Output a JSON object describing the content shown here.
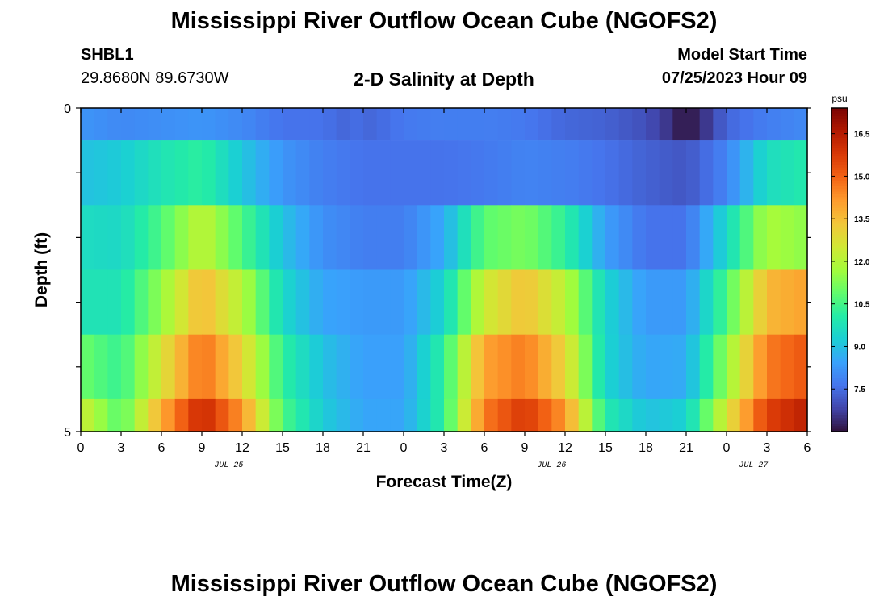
{
  "header": {
    "title": "Mississippi River Outflow Ocean Cube (NGOFS2)",
    "station": "SHBL1",
    "coords": "29.8680N  89.6730W",
    "subtitle": "2-D Salinity at Depth",
    "start_label": "Model Start Time",
    "start_value": "07/25/2023 Hour 09"
  },
  "footer": {
    "title": "Mississippi River Outflow Ocean Cube (NGOFS2)"
  },
  "colors": {
    "colormap": [
      "#30123b",
      "#4145ab",
      "#4675ed",
      "#39a2fc",
      "#1bcfd4",
      "#24eca6",
      "#61fc6c",
      "#a4fc3b",
      "#d1e834",
      "#f3c63a",
      "#fe9b2d",
      "#f36315",
      "#d93806",
      "#b11901",
      "#7a0403"
    ],
    "frame": "#000000"
  },
  "chart_data": {
    "type": "heatmap",
    "xlabel": "Forecast Time(Z)",
    "ylabel": "Depth (ft)",
    "x_tick_labels": [
      "0",
      "3",
      "6",
      "9",
      "12",
      "15",
      "18",
      "21",
      "0",
      "3",
      "6",
      "9",
      "12",
      "15",
      "18",
      "21",
      "0",
      "3",
      "6"
    ],
    "date_labels": [
      {
        "label": "JUL 25",
        "hour": 11
      },
      {
        "label": "JUL 26",
        "hour": 35
      },
      {
        "label": "JUL 27",
        "hour": 50
      }
    ],
    "xlim_hours": [
      0,
      54
    ],
    "y_tick_labels": [
      {
        "depth": 0,
        "label": "0"
      },
      {
        "depth": 5,
        "label": "5"
      }
    ],
    "ylim": [
      0,
      5
    ],
    "colorbar": {
      "unit": "psu",
      "range": [
        6.0,
        17.4
      ],
      "ticks": [
        "7.5",
        "9.0",
        "10.5",
        "12.0",
        "13.5",
        "15.0",
        "16.5"
      ]
    },
    "layers": [
      {
        "depth": "0-0.5",
        "times": [
          0,
          3,
          6,
          9,
          12,
          15,
          18,
          19.5,
          20.5,
          21,
          21.5,
          22.5,
          24,
          27,
          30,
          33,
          36,
          39,
          42,
          43.5,
          44.5,
          45,
          45.5,
          46.5,
          48,
          51,
          54
        ],
        "values": [
          8.2,
          8.0,
          8.1,
          8.2,
          8.0,
          7.6,
          7.6,
          7.4,
          7.5,
          7.4,
          7.4,
          7.5,
          7.7,
          7.8,
          7.8,
          7.7,
          7.4,
          7.3,
          7.0,
          6.6,
          6.2,
          6.0,
          6.2,
          6.6,
          7.4,
          7.8,
          8.0
        ]
      },
      {
        "depth": "0.5-1.5",
        "times": [
          0,
          3,
          6,
          9,
          12,
          15,
          18,
          21,
          24,
          27,
          30,
          33,
          36,
          39,
          42,
          45,
          48,
          51,
          54
        ],
        "values": [
          9.0,
          9.2,
          9.8,
          10.2,
          9.1,
          8.2,
          7.8,
          7.6,
          7.6,
          7.6,
          7.7,
          7.9,
          7.8,
          7.6,
          7.3,
          7.1,
          7.9,
          9.6,
          10.0
        ]
      },
      {
        "depth": "1.5-2.5",
        "times": [
          0,
          3,
          6,
          9,
          12,
          15,
          18,
          21,
          24,
          27,
          30,
          33,
          36,
          39,
          42,
          45,
          48,
          51,
          54
        ],
        "values": [
          9.6,
          9.5,
          10.6,
          12.2,
          10.6,
          9.0,
          8.1,
          7.8,
          7.8,
          8.6,
          10.8,
          11.2,
          10.2,
          8.4,
          7.6,
          7.6,
          9.5,
          11.8,
          11.4
        ]
      },
      {
        "depth": "2.5-3.5",
        "times": [
          0,
          3,
          6,
          9,
          12,
          15,
          18,
          21,
          24,
          27,
          30,
          33,
          36,
          39,
          42,
          45,
          48,
          51,
          54
        ],
        "values": [
          9.8,
          9.8,
          11.5,
          13.6,
          12.0,
          9.5,
          8.5,
          8.3,
          8.3,
          9.4,
          12.4,
          13.4,
          12.1,
          9.4,
          8.3,
          8.3,
          10.6,
          13.6,
          14.0
        ]
      },
      {
        "depth": "3.5-4.5",
        "times": [
          0,
          3,
          6,
          9,
          12,
          15,
          18,
          21,
          24,
          27,
          30,
          33,
          36,
          39,
          42,
          45,
          48,
          51,
          54
        ],
        "values": [
          11.0,
          10.3,
          12.6,
          14.8,
          13.0,
          10.2,
          9.0,
          8.4,
          8.4,
          10.2,
          14.0,
          14.6,
          13.0,
          9.4,
          8.5,
          8.6,
          11.5,
          14.6,
          15.2
        ]
      },
      {
        "depth": "4.5-5",
        "times": [
          0,
          3,
          6,
          9,
          12,
          15,
          18,
          21,
          24,
          27,
          30,
          33,
          36,
          39,
          42,
          45,
          48,
          51,
          54
        ],
        "values": [
          12.4,
          10.7,
          13.8,
          16.2,
          14.2,
          10.6,
          9.2,
          8.5,
          8.5,
          10.2,
          14.6,
          15.8,
          14.2,
          10.0,
          9.0,
          9.3,
          12.6,
          15.6,
          16.4
        ]
      }
    ]
  }
}
